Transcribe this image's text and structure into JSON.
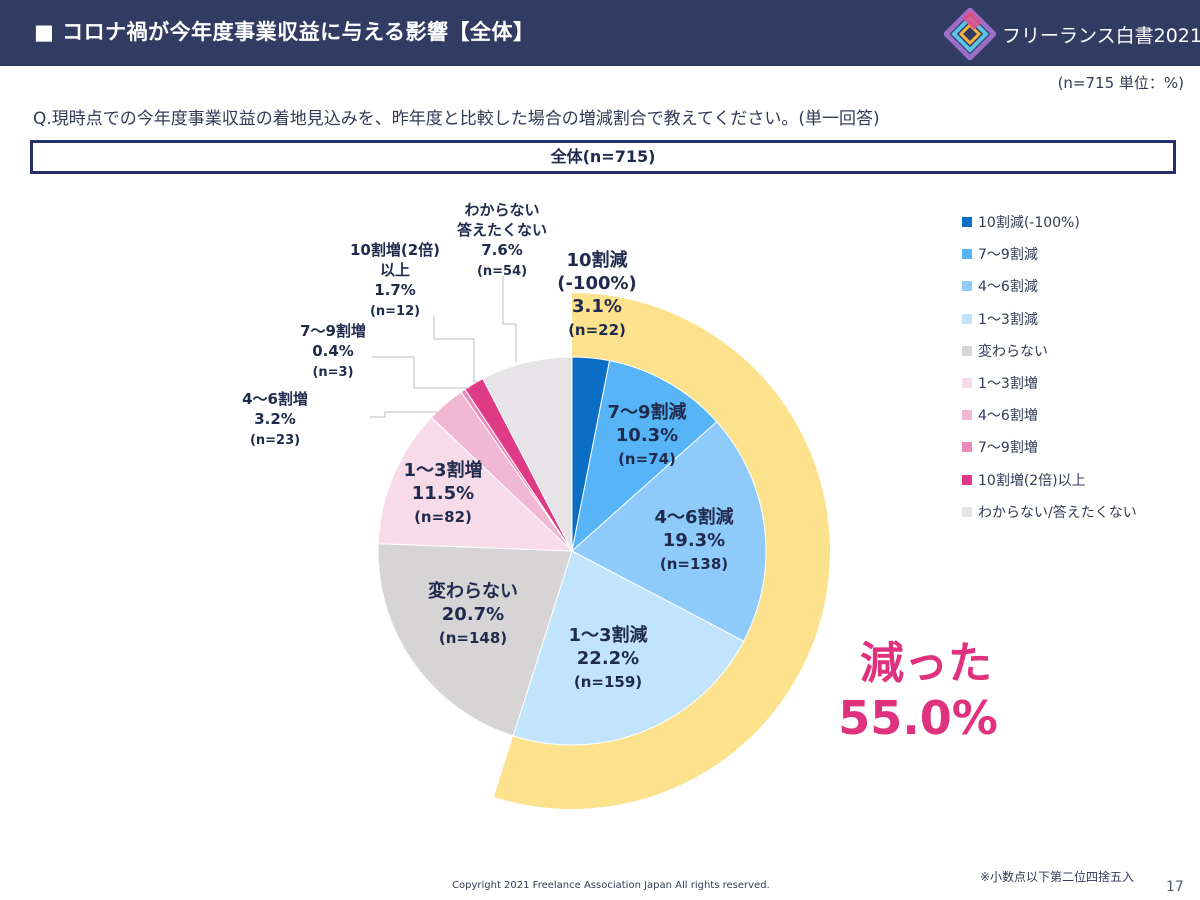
{
  "header": {
    "title": "■ コロナ禍が今年度事業収益に与える影響【全体】",
    "logo_text": "フリーランス白書2021"
  },
  "unit_note": "(n=715 単位：%)",
  "question": "Q.現時点での今年度事業収益の着地見込みを、昨年度と比較した場合の増減割合で教えてください。(単一回答)",
  "total_label": "全体(n=715)",
  "chart_data": {
    "type": "pie",
    "title": "全体(n=715)",
    "slices": [
      {
        "legend": "10割減(-100%)",
        "label_lines": [
          "10割減",
          "(-100%)"
        ],
        "value": 3.1,
        "n": "(n=22)",
        "color": "#0a6fc4"
      },
      {
        "legend": "7～9割減",
        "label_lines": [
          "7～9割減"
        ],
        "value": 10.3,
        "n": "(n=74)",
        "color": "#56b4f7"
      },
      {
        "legend": "4～6割減",
        "label_lines": [
          "4～6割減"
        ],
        "value": 19.3,
        "n": "(n=138)",
        "color": "#8fcbfa"
      },
      {
        "legend": "1～3割減",
        "label_lines": [
          "1～3割減"
        ],
        "value": 22.2,
        "n": "(n=159)",
        "color": "#c2e3fc"
      },
      {
        "legend": "変わらない",
        "label_lines": [
          "変わらない"
        ],
        "value": 20.7,
        "n": "(n=148)",
        "color": "#d7d4d6"
      },
      {
        "legend": "1～3割増",
        "label_lines": [
          "1～3割増"
        ],
        "value": 11.5,
        "n": "(n=82)",
        "color": "#f8dbe9"
      },
      {
        "legend": "4～6割増",
        "label_lines": [
          "4～6割増"
        ],
        "value": 3.2,
        "n": "(n=23)",
        "color": "#f0b8d2"
      },
      {
        "legend": "7～9割増",
        "label_lines": [
          "7～9割増"
        ],
        "value": 0.4,
        "n": "(n=3)",
        "color": "#eb8cb8"
      },
      {
        "legend": "10割増(2倍)以上",
        "label_lines": [
          "10割増(2倍)",
          "以上"
        ],
        "value": 1.7,
        "n": "(n=12)",
        "color": "#df3a85"
      },
      {
        "legend": "わからない/答えたくない",
        "label_lines": [
          "わからない",
          "答えたくない"
        ],
        "value": 7.6,
        "n": "(n=54)",
        "color": "#e6e4e6"
      }
    ],
    "highlight": {
      "label": "減った",
      "value_text": "55.0%",
      "color": "#e0317f",
      "ring_color": "#fce28c"
    }
  },
  "footnote": "※小数点以下第二位四捨五入",
  "copyright": "Copyright 2021 Freelance Association Japan All rights reserved.",
  "page_number": "17"
}
